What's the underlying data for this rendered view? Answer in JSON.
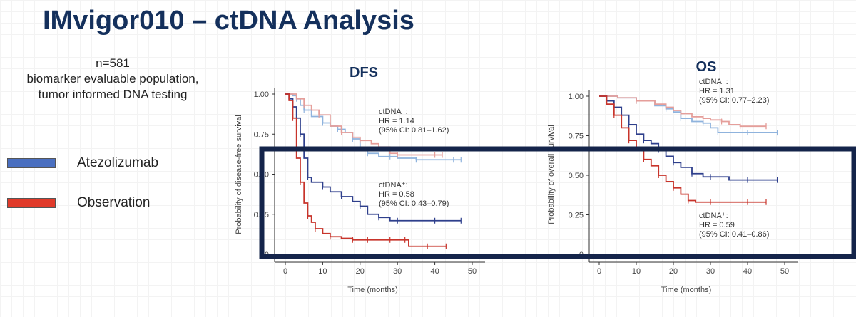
{
  "page": {
    "title": "IMvigor010 – ctDNA Analysis",
    "population_lines": [
      "n=581",
      "biomarker evaluable population,",
      "tumor informed DNA testing"
    ],
    "legend": [
      {
        "label": "Atezolizumab",
        "color": "#4a6fc0"
      },
      {
        "label": "Observation",
        "color": "#e03a2a"
      }
    ]
  },
  "chart_data": [
    {
      "type": "line",
      "title": "DFS",
      "xlabel": "Time (months)",
      "ylabel": "Probability of disease-free survival",
      "xlim": [
        0,
        50
      ],
      "ylim": [
        0,
        1
      ],
      "xticks": [
        "0",
        "10",
        "20",
        "30",
        "40",
        "50"
      ],
      "yticks": [
        "0",
        "0.25",
        "0.50",
        "0.75",
        "1.00"
      ],
      "annotations": [
        {
          "lines": [
            "ctDNA⁻:",
            "HR = 1.14",
            "(95% CI: 0.81–1.62)"
          ]
        },
        {
          "lines": [
            "ctDNA⁺:",
            "HR = 0.58",
            "(95% CI: 0.43–0.79)"
          ]
        }
      ],
      "series": [
        {
          "name": "Atezolizumab ctDNA⁻",
          "color": "#8fb3dd",
          "x": [
            0,
            2,
            3,
            4,
            5,
            7,
            10,
            12,
            14,
            16,
            18,
            20,
            22,
            25,
            28,
            30,
            35,
            40,
            45,
            47
          ],
          "y": [
            1.0,
            0.99,
            0.97,
            0.93,
            0.9,
            0.86,
            0.82,
            0.8,
            0.78,
            0.76,
            0.72,
            0.66,
            0.63,
            0.61,
            0.61,
            0.6,
            0.59,
            0.59,
            0.59,
            0.59
          ]
        },
        {
          "name": "Observation ctDNA⁻",
          "color": "#e59e9a",
          "x": [
            0,
            3,
            5,
            7,
            9,
            12,
            15,
            18,
            20,
            23,
            25,
            28,
            30,
            35,
            40,
            42
          ],
          "y": [
            1.0,
            0.97,
            0.93,
            0.9,
            0.87,
            0.8,
            0.76,
            0.73,
            0.71,
            0.69,
            0.67,
            0.63,
            0.62,
            0.62,
            0.62,
            0.62
          ]
        },
        {
          "name": "Atezolizumab ctDNA⁺",
          "color": "#2e3f8c",
          "x": [
            0,
            1,
            2,
            3,
            4,
            5,
            6,
            7,
            10,
            12,
            15,
            18,
            20,
            22,
            25,
            28,
            30,
            35,
            40,
            47
          ],
          "y": [
            1.0,
            0.97,
            0.92,
            0.85,
            0.75,
            0.6,
            0.48,
            0.45,
            0.42,
            0.39,
            0.36,
            0.33,
            0.3,
            0.25,
            0.23,
            0.21,
            0.21,
            0.21,
            0.21,
            0.21
          ]
        },
        {
          "name": "Observation ctDNA⁺",
          "color": "#c8342b",
          "x": [
            0,
            1,
            2,
            3,
            4,
            5,
            6,
            7,
            8,
            10,
            12,
            15,
            18,
            20,
            22,
            25,
            28,
            30,
            32,
            33,
            38,
            43
          ],
          "y": [
            1.0,
            0.96,
            0.85,
            0.6,
            0.45,
            0.32,
            0.24,
            0.2,
            0.16,
            0.13,
            0.11,
            0.1,
            0.09,
            0.09,
            0.09,
            0.09,
            0.09,
            0.09,
            0.09,
            0.05,
            0.05,
            0.05
          ]
        }
      ]
    },
    {
      "type": "line",
      "title": "OS",
      "xlabel": "Time (months)",
      "ylabel": "Probability of overall survival",
      "xlim": [
        0,
        50
      ],
      "ylim": [
        0,
        1
      ],
      "xticks": [
        "0",
        "10",
        "20",
        "30",
        "40",
        "50"
      ],
      "yticks": [
        "0",
        "0.25",
        "0.50",
        "0.75",
        "1.00"
      ],
      "annotations": [
        {
          "lines": [
            "ctDNA⁻:",
            "HR = 1.31",
            "(95% CI: 0.77–2.23)"
          ]
        },
        {
          "lines": [
            "ctDNA⁺:",
            "HR = 0.59",
            "(95% CI: 0.41–0.86)"
          ]
        }
      ],
      "series": [
        {
          "name": "Atezolizumab ctDNA⁻",
          "color": "#8fb3dd",
          "x": [
            0,
            5,
            10,
            15,
            18,
            20,
            22,
            25,
            28,
            30,
            32,
            35,
            40,
            45,
            48
          ],
          "y": [
            1.0,
            0.99,
            0.97,
            0.94,
            0.92,
            0.9,
            0.86,
            0.84,
            0.83,
            0.8,
            0.77,
            0.77,
            0.77,
            0.77,
            0.77
          ]
        },
        {
          "name": "Observation ctDNA⁻",
          "color": "#e59e9a",
          "x": [
            0,
            5,
            10,
            15,
            18,
            20,
            22,
            25,
            28,
            30,
            33,
            35,
            38,
            40,
            45
          ],
          "y": [
            1.0,
            0.99,
            0.97,
            0.95,
            0.93,
            0.91,
            0.89,
            0.87,
            0.86,
            0.85,
            0.84,
            0.82,
            0.81,
            0.81,
            0.81
          ]
        },
        {
          "name": "Atezolizumab ctDNA⁺",
          "color": "#2e3f8c",
          "x": [
            0,
            2,
            4,
            6,
            8,
            10,
            12,
            14,
            16,
            18,
            20,
            22,
            25,
            28,
            30,
            35,
            40,
            48
          ],
          "y": [
            1.0,
            0.97,
            0.93,
            0.88,
            0.82,
            0.76,
            0.72,
            0.7,
            0.66,
            0.62,
            0.58,
            0.55,
            0.51,
            0.49,
            0.49,
            0.47,
            0.47,
            0.47
          ]
        },
        {
          "name": "Observation ctDNA⁺",
          "color": "#c8342b",
          "x": [
            0,
            2,
            4,
            6,
            8,
            10,
            12,
            14,
            16,
            18,
            20,
            22,
            24,
            26,
            30,
            35,
            40,
            45
          ],
          "y": [
            1.0,
            0.95,
            0.88,
            0.8,
            0.72,
            0.66,
            0.6,
            0.56,
            0.5,
            0.46,
            0.42,
            0.38,
            0.34,
            0.33,
            0.33,
            0.33,
            0.33,
            0.33
          ]
        }
      ]
    }
  ]
}
